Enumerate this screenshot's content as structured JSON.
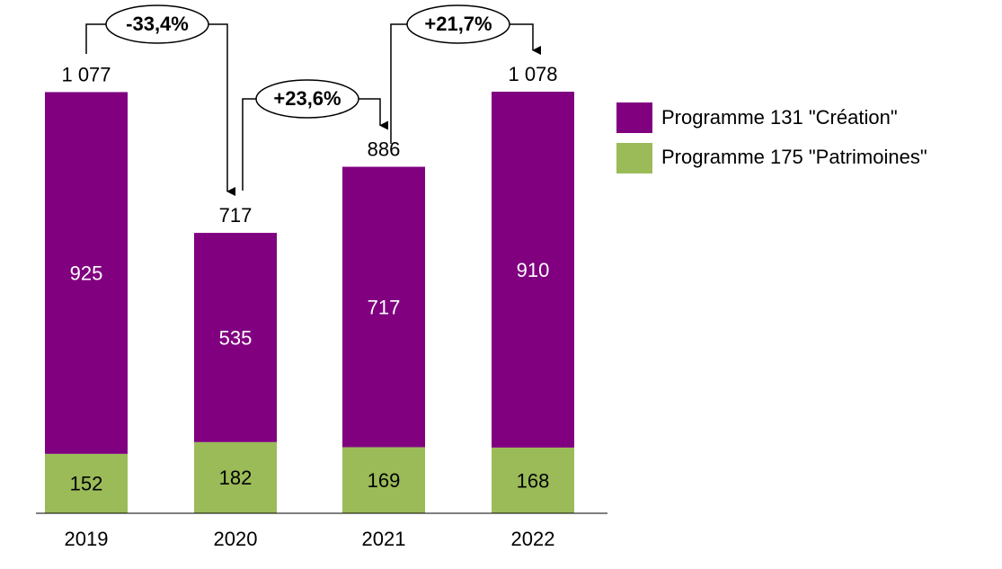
{
  "colors": {
    "creation": "#800080",
    "patrimoines": "#9BBB59",
    "axis": "#000000"
  },
  "chart_data": {
    "type": "bar",
    "stacked": true,
    "categories": [
      "2019",
      "2020",
      "2021",
      "2022"
    ],
    "series": [
      {
        "name": "Programme 175 \"Patrimoines\"",
        "values": [
          152,
          182,
          169,
          168
        ]
      },
      {
        "name": "Programme 131 \"Création\"",
        "values": [
          925,
          535,
          717,
          910
        ]
      }
    ],
    "totals": [
      "1 077",
      "717",
      "886",
      "1 078"
    ],
    "changes": [
      {
        "from": "2019",
        "to": "2020",
        "label": "-33,4%"
      },
      {
        "from": "2020",
        "to": "2021",
        "label": "+23,6%"
      },
      {
        "from": "2021",
        "to": "2022",
        "label": "+21,7%"
      }
    ],
    "legend": {
      "placement": "right",
      "entries": [
        "Programme 131 \"Création\"",
        "Programme 175 \"Patrimoines\""
      ]
    },
    "ylim": [
      0,
      1078
    ],
    "grid": false,
    "title": "",
    "xlabel": "",
    "ylabel": ""
  }
}
